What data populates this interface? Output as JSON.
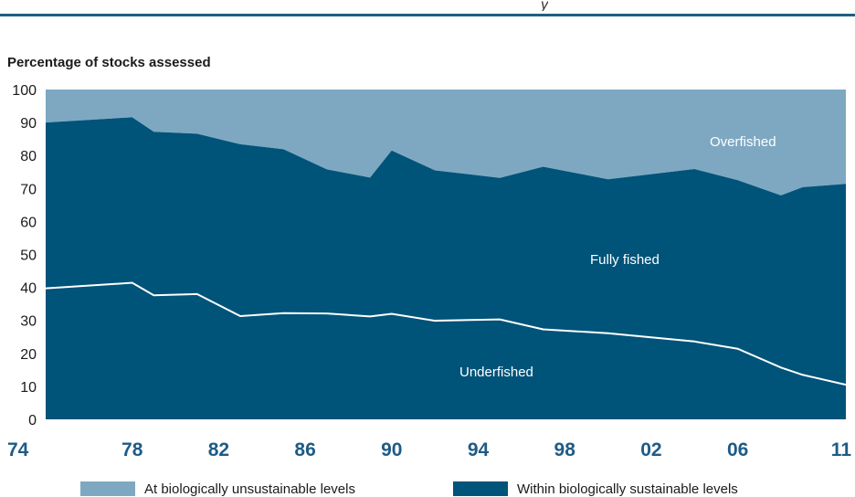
{
  "chart_data": {
    "type": "area",
    "ylabel": "Percentage of stocks assessed",
    "ylim": [
      0,
      100
    ],
    "xlim": [
      1974,
      2011
    ],
    "yticks": [
      "0",
      "10",
      "20",
      "30",
      "40",
      "50",
      "60",
      "70",
      "80",
      "90",
      "100"
    ],
    "xticks": [
      "74",
      "78",
      "82",
      "86",
      "90",
      "94",
      "98",
      "02",
      "06",
      "11"
    ],
    "xtick_values": [
      1974,
      1978,
      1982,
      1986,
      1990,
      1994,
      1998,
      2002,
      2006,
      2011
    ],
    "x": [
      1974,
      1978,
      1979,
      1981,
      1983,
      1985,
      1987,
      1989,
      1990,
      1992,
      1995,
      1997,
      2000,
      2004,
      2006,
      2008,
      2009,
      2011
    ],
    "series": [
      {
        "name": "Underfished",
        "color": "#005379",
        "values": [
          39.7,
          41.4,
          37.6,
          38.0,
          31.3,
          32.2,
          32.1,
          31.2,
          32.0,
          29.9,
          30.3,
          27.3,
          26.1,
          23.6,
          21.4,
          15.7,
          13.5,
          10.5
        ]
      },
      {
        "name": "Fully fished",
        "color": "#005379",
        "values": [
          90.0,
          91.6,
          87.2,
          86.6,
          83.4,
          81.9,
          75.8,
          73.3,
          81.5,
          75.5,
          73.2,
          76.6,
          72.8,
          75.9,
          72.5,
          67.9,
          70.4,
          71.4
        ]
      },
      {
        "name": "Overfished",
        "color": "#7ea8c2",
        "values": [
          100,
          100,
          100,
          100,
          100,
          100,
          100,
          100,
          100,
          100,
          100,
          100,
          100,
          100,
          100,
          100,
          100,
          100
        ]
      }
    ],
    "region_labels": [
      "Overfished",
      "Fully fished",
      "Underfished"
    ],
    "legend": [
      {
        "label": "At biologically unsustainable levels",
        "color": "#7ea8c2"
      },
      {
        "label": "Within biologically sustainable levels",
        "color": "#005379"
      }
    ],
    "grid": false,
    "legend_position": "bottom"
  },
  "header": {
    "cut_text": "y"
  }
}
